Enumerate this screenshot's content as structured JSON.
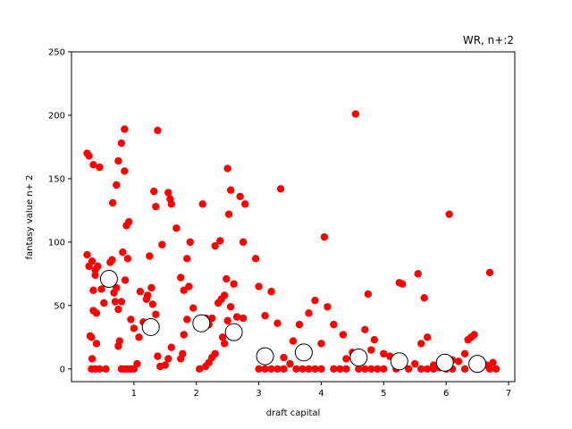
{
  "chart_data": {
    "type": "scatter",
    "title": "WR, n+:2",
    "xlabel": "draft capital",
    "ylabel": "fantasy value n+ 2",
    "xlim": [
      0.0,
      7.1
    ],
    "ylim": [
      -10,
      250
    ],
    "xticks": [
      1,
      2,
      3,
      4,
      5,
      6,
      7
    ],
    "yticks": [
      0,
      50,
      100,
      150,
      200,
      250
    ],
    "grid": false,
    "colors": {
      "points": "#ff0000",
      "means_fill": "#ffffff",
      "means_edge": "#000000"
    },
    "series": [
      {
        "style": "red-filled-dots",
        "points": [
          [
            0.25,
            170
          ],
          [
            0.28,
            168
          ],
          [
            0.35,
            161
          ],
          [
            0.45,
            159
          ],
          [
            0.25,
            90
          ],
          [
            0.28,
            81
          ],
          [
            0.33,
            85
          ],
          [
            0.38,
            78
          ],
          [
            0.42,
            81
          ],
          [
            0.3,
            26
          ],
          [
            0.32,
            25
          ],
          [
            0.35,
            46
          ],
          [
            0.4,
            44
          ],
          [
            0.35,
            62
          ],
          [
            0.38,
            74
          ],
          [
            0.4,
            20
          ],
          [
            0.48,
            63
          ],
          [
            0.52,
            52
          ],
          [
            0.58,
            67
          ],
          [
            0.62,
            84
          ],
          [
            0.65,
            86
          ],
          [
            0.68,
            60
          ],
          [
            0.7,
            53
          ],
          [
            0.72,
            64
          ],
          [
            0.75,
            47
          ],
          [
            0.8,
            53
          ],
          [
            0.66,
            131
          ],
          [
            0.72,
            145
          ],
          [
            0.75,
            164
          ],
          [
            0.8,
            178
          ],
          [
            0.85,
            156
          ],
          [
            0.85,
            189
          ],
          [
            0.88,
            113
          ],
          [
            0.9,
            87
          ],
          [
            0.92,
            116
          ],
          [
            0.82,
            92
          ],
          [
            0.86,
            70
          ],
          [
            0.95,
            39
          ],
          [
            0.75,
            18
          ],
          [
            0.77,
            22
          ],
          [
            0.33,
            8
          ],
          [
            0.32,
            0
          ],
          [
            0.38,
            0
          ],
          [
            0.45,
            0
          ],
          [
            0.55,
            0
          ],
          [
            0.8,
            0
          ],
          [
            0.85,
            0
          ],
          [
            0.9,
            0
          ],
          [
            0.95,
            0
          ],
          [
            1.0,
            0
          ],
          [
            1.05,
            4
          ],
          [
            1.0,
            32
          ],
          [
            1.08,
            25
          ],
          [
            1.1,
            61
          ],
          [
            1.15,
            37
          ],
          [
            1.2,
            55
          ],
          [
            1.22,
            58
          ],
          [
            1.25,
            89
          ],
          [
            1.28,
            64
          ],
          [
            1.3,
            51
          ],
          [
            1.32,
            140
          ],
          [
            1.35,
            128
          ],
          [
            1.38,
            188
          ],
          [
            1.35,
            43
          ],
          [
            1.38,
            10
          ],
          [
            1.45,
            98
          ],
          [
            1.55,
            139
          ],
          [
            1.58,
            134
          ],
          [
            1.6,
            130
          ],
          [
            1.68,
            111
          ],
          [
            1.75,
            72
          ],
          [
            1.8,
            62
          ],
          [
            1.85,
            87
          ],
          [
            1.88,
            65
          ],
          [
            1.9,
            100
          ],
          [
            1.95,
            48
          ],
          [
            1.85,
            39
          ],
          [
            1.8,
            27
          ],
          [
            1.78,
            12
          ],
          [
            1.75,
            8
          ],
          [
            1.6,
            17
          ],
          [
            1.55,
            8
          ],
          [
            1.5,
            3
          ],
          [
            1.42,
            2
          ],
          [
            2.1,
            130
          ],
          [
            2.15,
            40
          ],
          [
            2.2,
            35
          ],
          [
            2.25,
            40
          ],
          [
            2.3,
            97
          ],
          [
            2.35,
            52
          ],
          [
            2.38,
            101
          ],
          [
            2.4,
            55
          ],
          [
            2.45,
            58
          ],
          [
            2.48,
            71
          ],
          [
            2.5,
            158
          ],
          [
            2.52,
            122
          ],
          [
            2.55,
            141
          ],
          [
            2.6,
            67
          ],
          [
            2.65,
            41
          ],
          [
            2.7,
            136
          ],
          [
            2.75,
            40
          ],
          [
            2.78,
            130
          ],
          [
            2.75,
            100
          ],
          [
            2.55,
            49
          ],
          [
            2.5,
            38
          ],
          [
            2.42,
            25
          ],
          [
            2.45,
            20
          ],
          [
            2.3,
            12
          ],
          [
            2.25,
            9
          ],
          [
            2.2,
            5
          ],
          [
            2.15,
            2
          ],
          [
            2.05,
            0
          ],
          [
            2.95,
            87
          ],
          [
            3.0,
            65
          ],
          [
            3.1,
            42
          ],
          [
            3.2,
            61
          ],
          [
            3.35,
            142
          ],
          [
            3.3,
            36
          ],
          [
            3.4,
            9
          ],
          [
            3.5,
            4
          ],
          [
            3.55,
            22
          ],
          [
            3.65,
            35
          ],
          [
            3.7,
            17
          ],
          [
            3.8,
            44
          ],
          [
            3.9,
            54
          ],
          [
            4.0,
            20
          ],
          [
            4.05,
            104
          ],
          [
            4.1,
            49
          ],
          [
            4.2,
            35
          ],
          [
            4.35,
            27
          ],
          [
            4.4,
            8
          ],
          [
            4.5,
            13
          ],
          [
            4.55,
            201
          ],
          [
            4.7,
            31
          ],
          [
            4.75,
            59
          ],
          [
            4.8,
            15
          ],
          [
            4.85,
            23
          ],
          [
            5.0,
            12
          ],
          [
            5.1,
            10
          ],
          [
            5.25,
            68
          ],
          [
            5.3,
            67
          ],
          [
            5.5,
            4
          ],
          [
            5.55,
            75
          ],
          [
            5.6,
            20
          ],
          [
            5.65,
            56
          ],
          [
            5.7,
            25
          ],
          [
            5.8,
            3
          ],
          [
            5.9,
            1
          ],
          [
            6.0,
            4
          ],
          [
            6.05,
            122
          ],
          [
            6.1,
            7
          ],
          [
            6.2,
            6
          ],
          [
            6.3,
            12
          ],
          [
            6.35,
            23
          ],
          [
            6.4,
            25
          ],
          [
            6.45,
            27
          ],
          [
            6.5,
            6
          ],
          [
            6.55,
            2
          ],
          [
            6.6,
            4
          ],
          [
            6.65,
            3
          ],
          [
            6.7,
            76
          ],
          [
            6.75,
            5
          ],
          [
            6.8,
            0
          ],
          [
            3.0,
            0
          ],
          [
            3.1,
            0
          ],
          [
            3.2,
            0
          ],
          [
            3.3,
            0
          ],
          [
            3.4,
            0
          ],
          [
            3.6,
            0
          ],
          [
            3.7,
            0
          ],
          [
            3.8,
            0
          ],
          [
            3.9,
            0
          ],
          [
            4.0,
            0
          ],
          [
            4.2,
            0
          ],
          [
            4.3,
            0
          ],
          [
            4.4,
            0
          ],
          [
            4.6,
            0
          ],
          [
            4.7,
            0
          ],
          [
            4.8,
            0
          ],
          [
            4.9,
            0
          ],
          [
            5.0,
            0
          ],
          [
            5.2,
            0
          ],
          [
            5.4,
            0
          ],
          [
            5.6,
            0
          ],
          [
            5.7,
            0
          ],
          [
            5.8,
            0
          ],
          [
            6.0,
            0
          ],
          [
            6.1,
            0
          ],
          [
            6.3,
            0
          ],
          [
            6.5,
            0
          ],
          [
            6.7,
            0
          ]
        ]
      },
      {
        "style": "hollow-circles",
        "points": [
          [
            0.6,
            71
          ],
          [
            1.27,
            33
          ],
          [
            2.08,
            36
          ],
          [
            2.6,
            29
          ],
          [
            3.1,
            10
          ],
          [
            3.72,
            13
          ],
          [
            4.6,
            9
          ],
          [
            5.25,
            6
          ],
          [
            5.98,
            5
          ],
          [
            6.5,
            4
          ]
        ]
      }
    ]
  }
}
